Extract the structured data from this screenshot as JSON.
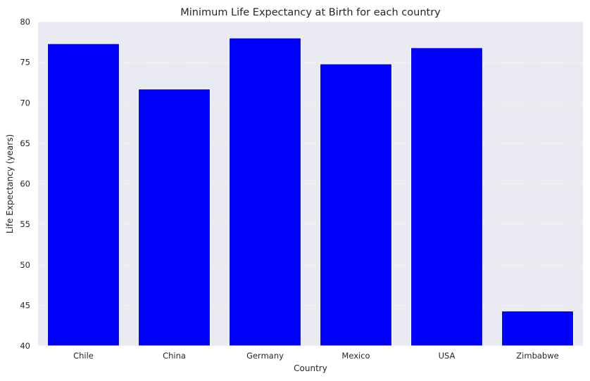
{
  "chart_data": {
    "type": "bar",
    "title": "Minimum Life Expectancy at Birth for each country",
    "xlabel": "Country",
    "ylabel": "Life Expectancy (years)",
    "categories": [
      "Chile",
      "China",
      "Germany",
      "Mexico",
      "USA",
      "Zimbabwe"
    ],
    "values": [
      77.3,
      71.7,
      78.0,
      74.8,
      76.8,
      44.3
    ],
    "ylim": [
      40,
      80
    ],
    "yticks": [
      40,
      45,
      50,
      55,
      60,
      65,
      70,
      75,
      80
    ],
    "grid": true,
    "bar_color": "#0000ff",
    "plot_background": "#eaeaf2"
  }
}
